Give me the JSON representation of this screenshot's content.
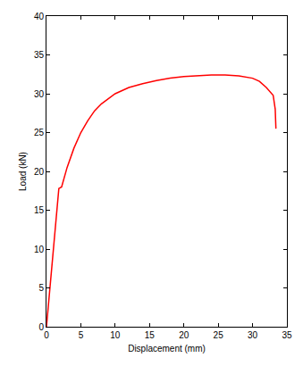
{
  "chart_data": {
    "type": "line",
    "x_label": "Displacement (mm)",
    "y_label": "Load (kN)",
    "x": [
      0,
      0.5,
      1,
      1.5,
      1.8,
      2.2,
      3,
      4,
      5,
      6,
      7,
      8,
      10,
      12,
      14,
      16,
      18,
      20,
      22,
      24,
      26,
      28,
      30,
      31,
      32,
      33,
      33.3,
      33.4
    ],
    "series": [
      {
        "name": "Load",
        "color": "#ff0000",
        "line_style": "solid",
        "values": [
          0,
          5,
          10,
          15,
          17.8,
          18,
          20.5,
          23,
          25,
          26.5,
          27.8,
          28.7,
          30,
          30.8,
          31.3,
          31.7,
          32,
          32.2,
          32.3,
          32.4,
          32.4,
          32.3,
          32,
          31.6,
          30.8,
          29.8,
          28,
          25.5
        ]
      }
    ],
    "xlim": [
      0,
      35
    ],
    "xticks": [
      0,
      5,
      10,
      15,
      20,
      25,
      30,
      35
    ],
    "ylim": [
      0,
      40
    ],
    "yticks": [
      0,
      5,
      10,
      15,
      20,
      25,
      30,
      35,
      40
    ],
    "grid": false
  }
}
